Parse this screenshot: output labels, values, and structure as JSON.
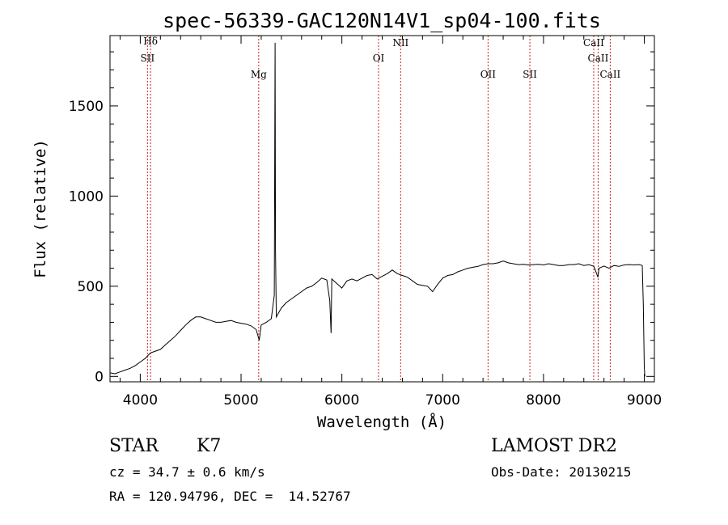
{
  "chart_data": {
    "type": "line",
    "title": "spec-56339-GAC120N14V1_sp04-100.fits",
    "xlabel": "Wavelength (Å)",
    "ylabel": "Flux (relative)",
    "xlim": [
      3700,
      9100
    ],
    "ylim": [
      -30,
      1890
    ],
    "x_ticks": [
      4000,
      5000,
      6000,
      7000,
      8000,
      9000
    ],
    "y_ticks": [
      0,
      500,
      1000,
      1500
    ],
    "grid": false,
    "series": [
      {
        "x": [
          3700,
          3750,
          3800,
          3850,
          3900,
          3950,
          4000,
          4050,
          4100,
          4150,
          4200,
          4250,
          4300,
          4350,
          4400,
          4450,
          4500,
          4550,
          4600,
          4650,
          4700,
          4750,
          4800,
          4850,
          4900,
          4950,
          5000,
          5050,
          5100,
          5150,
          5180,
          5200,
          5250,
          5300,
          5330,
          5338,
          5342,
          5350,
          5400,
          5450,
          5500,
          5550,
          5600,
          5650,
          5700,
          5750,
          5800,
          5850,
          5880,
          5893,
          5900,
          5950,
          6000,
          6050,
          6100,
          6150,
          6200,
          6250,
          6300,
          6350,
          6400,
          6450,
          6500,
          6550,
          6600,
          6650,
          6700,
          6750,
          6800,
          6850,
          6900,
          6950,
          7000,
          7050,
          7100,
          7150,
          7200,
          7250,
          7300,
          7350,
          7400,
          7450,
          7500,
          7550,
          7600,
          7650,
          7700,
          7750,
          7800,
          7850,
          7900,
          7950,
          8000,
          8050,
          8100,
          8150,
          8200,
          8250,
          8300,
          8350,
          8400,
          8450,
          8500,
          8540,
          8550,
          8600,
          8650,
          8700,
          8750,
          8800,
          8850,
          8900,
          8950,
          8980,
          8990,
          9000,
          9005
        ],
        "y": [
          20,
          15,
          25,
          35,
          45,
          60,
          80,
          100,
          130,
          140,
          150,
          175,
          200,
          225,
          255,
          285,
          310,
          330,
          330,
          320,
          310,
          300,
          300,
          305,
          310,
          300,
          295,
          290,
          280,
          260,
          200,
          285,
          300,
          320,
          450,
          1850,
          700,
          330,
          380,
          410,
          430,
          450,
          470,
          490,
          500,
          520,
          545,
          535,
          420,
          240,
          540,
          515,
          490,
          530,
          540,
          530,
          545,
          560,
          565,
          540,
          555,
          570,
          590,
          570,
          560,
          550,
          530,
          510,
          505,
          500,
          470,
          510,
          545,
          560,
          565,
          580,
          590,
          600,
          605,
          610,
          620,
          625,
          625,
          630,
          640,
          630,
          625,
          620,
          622,
          618,
          620,
          622,
          618,
          625,
          620,
          615,
          615,
          620,
          620,
          625,
          615,
          620,
          610,
          550,
          600,
          612,
          600,
          615,
          610,
          618,
          620,
          618,
          620,
          615,
          400,
          50,
          0
        ]
      }
    ],
    "annotations": [
      {
        "label": "Hδ",
        "wavelength": 4102
      },
      {
        "label": "SII",
        "wavelength": 4072
      },
      {
        "label": "Mg",
        "wavelength": 5175
      },
      {
        "label": "OI",
        "wavelength": 6364
      },
      {
        "label": "NII",
        "wavelength": 6583
      },
      {
        "label": "OII",
        "wavelength": 7450
      },
      {
        "label": "SII",
        "wavelength": 7865
      },
      {
        "label": "CaII",
        "wavelength": 8498
      },
      {
        "label": "CaII",
        "wavelength": 8542
      },
      {
        "label": "CaII",
        "wavelength": 8662
      }
    ],
    "colors": {
      "spectrum": "#000000",
      "marker_line": "#cc2222"
    }
  },
  "footer": {
    "object_class": "STAR",
    "subclass": "K7",
    "survey": "LAMOST DR2",
    "redshift_text": "cz = 34.7 ± 0.6 km/s",
    "obs_date_text": "Obs-Date: 20130215",
    "coords_text": "RA = 120.94796, DEC =  14.52767"
  }
}
